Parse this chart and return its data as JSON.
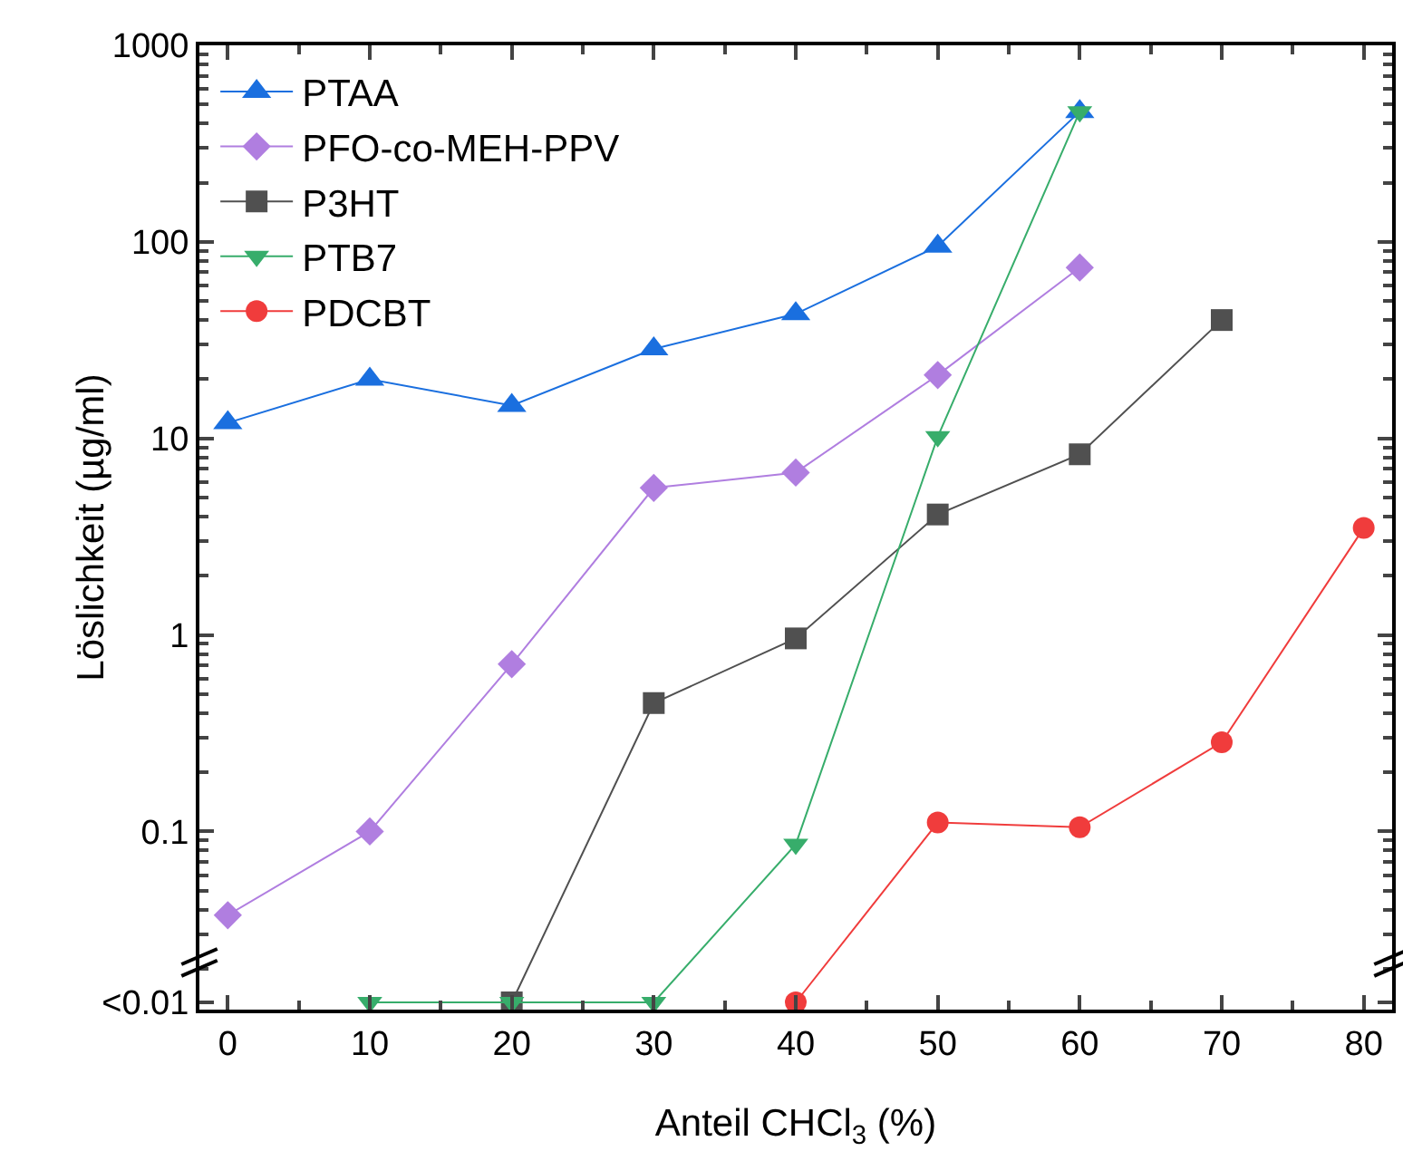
{
  "chart_data": {
    "type": "line",
    "xlabel": "Anteil CHCl$_{3}$ (%)",
    "ylabel": "Löslichkeit (µg/ml)",
    "x": [
      0,
      10,
      20,
      30,
      40,
      50,
      60,
      70,
      80
    ],
    "series": [
      {
        "name": "PTAA",
        "color": "#1a6fdf",
        "marker": "triangle",
        "values": [
          12,
          20,
          14.7,
          28.5,
          43,
          95,
          460,
          null,
          null
        ]
      },
      {
        "name": "PFO-co-MEH-PPV",
        "color": "#b07ee0",
        "marker": "diamond",
        "values": [
          0.0375,
          0.1,
          0.71,
          5.6,
          6.7,
          21,
          74,
          null,
          null
        ]
      },
      {
        "name": "P3HT",
        "color": "#505050",
        "marker": "square",
        "values": [
          null,
          null,
          0.0135,
          0.45,
          0.96,
          4.1,
          8.3,
          40,
          null
        ]
      },
      {
        "name": "PTB7",
        "color": "#37ad6b",
        "marker": "triangle-down",
        "values": [
          null,
          0.0135,
          0.0135,
          0.0135,
          0.086,
          10.2,
          460,
          null,
          null
        ]
      },
      {
        "name": "PDCBT",
        "color": "#f03c3c",
        "marker": "circle",
        "values": [
          null,
          null,
          null,
          null,
          0.0135,
          0.111,
          0.105,
          0.284,
          3.5
        ]
      }
    ],
    "log": "y",
    "xlim": [
      -2,
      82
    ],
    "xticks": [
      0,
      10,
      20,
      30,
      40,
      50,
      60,
      70,
      80
    ],
    "ylim": [
      0.0124,
      1000
    ],
    "yticks": [
      {
        "value": 0.0135,
        "label": "<0.01"
      },
      0.1,
      1,
      10,
      100,
      1000
    ],
    "grid": false,
    "legend": "top left",
    "line_style": "solid"
  }
}
